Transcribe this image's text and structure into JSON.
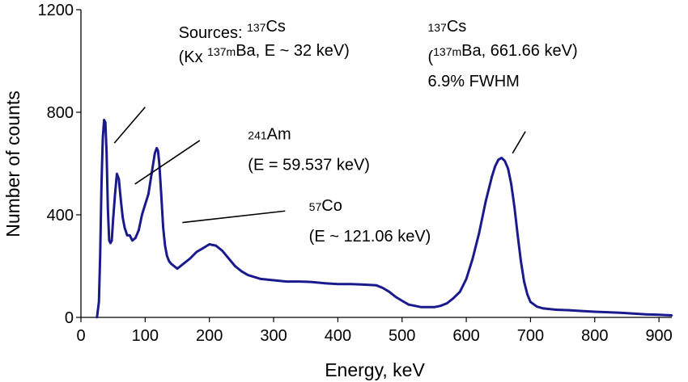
{
  "chart_data": {
    "type": "line",
    "title": "",
    "xlabel": "Energy, keV",
    "ylabel": "Number of counts",
    "xlim": [
      0,
      920
    ],
    "ylim": [
      0,
      1200
    ],
    "xticks": [
      "0",
      "100",
      "200",
      "300",
      "400",
      "500",
      "600",
      "700",
      "800",
      "900"
    ],
    "yticks": [
      "0",
      "400",
      "800",
      "1200"
    ],
    "grid": false,
    "line_color": "#1a1a8c",
    "series": [
      {
        "x": [
          25,
          28,
          30,
          32,
          34,
          36,
          38,
          40,
          42,
          44,
          46,
          48,
          50,
          53,
          56,
          59,
          62,
          65,
          68,
          72,
          76,
          80,
          85,
          90,
          95,
          100,
          105,
          110,
          115,
          118,
          120,
          122,
          125,
          128,
          131,
          134,
          137,
          140,
          145,
          150,
          155,
          160,
          170,
          180,
          190,
          200,
          210,
          220,
          230,
          240,
          250,
          260,
          280,
          300,
          320,
          340,
          360,
          380,
          400,
          420,
          440,
          460,
          470,
          480,
          490,
          500,
          510,
          520,
          530,
          540,
          550,
          560,
          570,
          580,
          590,
          600,
          610,
          620,
          630,
          640,
          645,
          650,
          655,
          660,
          665,
          670,
          675,
          680,
          685,
          690,
          695,
          700,
          710,
          720,
          740,
          760,
          780,
          800,
          820,
          840,
          860,
          880,
          900,
          920
        ],
        "y": [
          0,
          60,
          250,
          520,
          700,
          770,
          760,
          640,
          420,
          300,
          290,
          300,
          380,
          480,
          560,
          540,
          460,
          390,
          350,
          320,
          320,
          300,
          310,
          340,
          400,
          440,
          480,
          560,
          640,
          660,
          650,
          600,
          480,
          350,
          280,
          240,
          220,
          210,
          200,
          190,
          200,
          210,
          230,
          255,
          270,
          285,
          280,
          260,
          230,
          200,
          180,
          165,
          150,
          145,
          140,
          140,
          138,
          133,
          130,
          130,
          128,
          125,
          115,
          100,
          80,
          65,
          50,
          45,
          40,
          40,
          40,
          45,
          55,
          75,
          100,
          150,
          230,
          330,
          450,
          550,
          590,
          615,
          622,
          610,
          580,
          520,
          430,
          320,
          220,
          140,
          90,
          60,
          42,
          35,
          30,
          28,
          25,
          22,
          20,
          18,
          15,
          12,
          10,
          8
        ]
      }
    ],
    "annotations": [
      {
        "lines": [
          [
            {
              "t": "Sources: "
            },
            {
              "t": "137",
              "sup": true
            },
            {
              "t": "Cs"
            }
          ],
          [
            {
              "t": "(Kx "
            },
            {
              "t": "137m",
              "sup": true
            },
            {
              "t": "Ba, E ~ 32 keV)"
            }
          ]
        ],
        "text_at": [
          152,
          1090
        ],
        "pointer_from": [
          52,
          680
        ],
        "pointer_to": [
          100,
          820
        ]
      },
      {
        "lines": [
          [
            {
              "t": "241",
              "sup": true
            },
            {
              "t": "Am"
            }
          ],
          [
            {
              "t": "(E = 59.537 keV)"
            }
          ]
        ],
        "text_at": [
          260,
          670
        ],
        "pointer_from": [
          84,
          520
        ],
        "pointer_to": [
          185,
          690
        ]
      },
      {
        "lines": [
          [
            {
              "t": "57",
              "sup": true
            },
            {
              "t": "Co"
            }
          ],
          [
            {
              "t": "(E ~ 121.06 keV)"
            }
          ]
        ],
        "text_at": [
          355,
          390
        ],
        "pointer_from": [
          158,
          370
        ],
        "pointer_to": [
          318,
          415
        ]
      },
      {
        "lines": [
          [
            {
              "t": "137",
              "sup": true
            },
            {
              "t": "Cs"
            }
          ],
          [
            {
              "t": "("
            },
            {
              "t": "137m",
              "sup": true
            },
            {
              "t": "Ba, 661.66 keV)"
            }
          ],
          [
            {
              "t": "6.9% FWHM"
            }
          ]
        ],
        "text_at": [
          540,
          1090
        ],
        "pointer_from": [
          672,
          640
        ],
        "pointer_to": [
          692,
          725
        ]
      }
    ]
  }
}
